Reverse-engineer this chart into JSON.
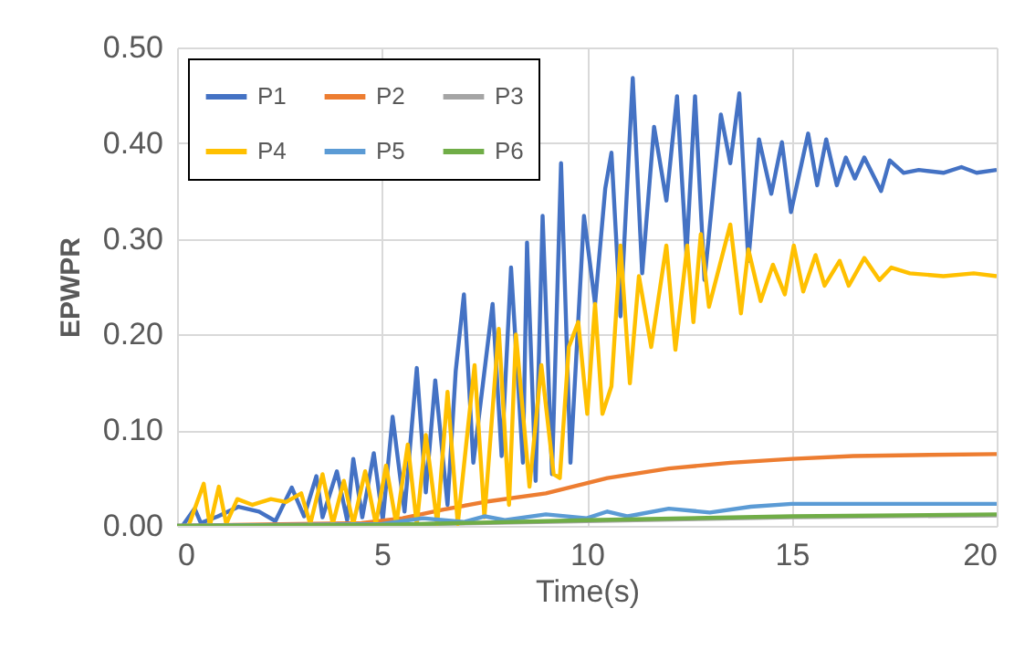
{
  "chart_data": {
    "type": "line",
    "xlabel": "Time(s)",
    "ylabel": "EPWPR",
    "xlim": [
      0,
      20
    ],
    "xticks": [
      0,
      5,
      10,
      15,
      20
    ],
    "ylim": [
      0,
      0.5
    ],
    "yticks": [
      {
        "value": 0,
        "label": "0.00"
      },
      {
        "value": 0.1,
        "label": "0.10"
      },
      {
        "value": 0.2,
        "label": "0.20"
      },
      {
        "value": 0.3,
        "label": "0.30"
      },
      {
        "value": 0.4,
        "label": "0.40"
      },
      {
        "value": 0.5,
        "label": "0.50"
      }
    ],
    "grid": true,
    "legend": "top left",
    "series": [
      {
        "name": "P1",
        "color": "#4472c4",
        "x": [
          0.13,
          0.43,
          0.58,
          1.0,
          1.5,
          2.0,
          2.4,
          2.8,
          3.1,
          3.4,
          3.55,
          3.9,
          4.15,
          4.3,
          4.52,
          4.8,
          5.02,
          5.26,
          5.55,
          5.85,
          6.07,
          6.3,
          6.6,
          6.8,
          7.0,
          7.23,
          7.7,
          7.92,
          8.15,
          8.44,
          8.54,
          8.75,
          8.92,
          9.15,
          9.37,
          9.6,
          9.93,
          10.2,
          10.45,
          10.6,
          10.82,
          11.12,
          11.35,
          11.64,
          11.94,
          12.2,
          12.43,
          12.64,
          12.87,
          13.27,
          13.5,
          13.72,
          13.94,
          14.2,
          14.5,
          14.76,
          14.98,
          15.4,
          15.62,
          15.84,
          16.1,
          16.32,
          16.54,
          16.77,
          17.18,
          17.39,
          17.73,
          18.1,
          18.7,
          19.14,
          19.51,
          20
        ],
        "values": [
          0,
          0.018,
          0.003,
          0.01,
          0.02,
          0.015,
          0.005,
          0.04,
          0.01,
          0.052,
          0.009,
          0.057,
          0.006,
          0.07,
          0.009,
          0.076,
          0.006,
          0.114,
          0.015,
          0.165,
          0.035,
          0.152,
          0.022,
          0.162,
          0.242,
          0.066,
          0.232,
          0.073,
          0.27,
          0.066,
          0.296,
          0.047,
          0.324,
          0.054,
          0.379,
          0.066,
          0.324,
          0.232,
          0.353,
          0.39,
          0.219,
          0.468,
          0.264,
          0.417,
          0.34,
          0.449,
          0.283,
          0.449,
          0.257,
          0.43,
          0.379,
          0.452,
          0.277,
          0.404,
          0.347,
          0.401,
          0.328,
          0.41,
          0.356,
          0.404,
          0.356,
          0.385,
          0.363,
          0.385,
          0.35,
          0.382,
          0.369,
          0.372,
          0.369,
          0.375,
          0.369,
          0.372
        ]
      },
      {
        "name": "P2",
        "color": "#ed7d31",
        "x": [
          0,
          4.5,
          5.5,
          6.5,
          7.5,
          9,
          10.5,
          12,
          13.5,
          15,
          16.5,
          18,
          20
        ],
        "values": [
          0,
          0.003,
          0.008,
          0.017,
          0.025,
          0.034,
          0.05,
          0.06,
          0.066,
          0.07,
          0.073,
          0.074,
          0.075
        ]
      },
      {
        "name": "P3",
        "color": "#a5a5a5",
        "x": [
          0,
          5,
          10,
          15,
          20
        ],
        "values": [
          0,
          0.001,
          0.005,
          0.009,
          0.011
        ]
      },
      {
        "name": "P4",
        "color": "#ffc000",
        "x": [
          0.28,
          0.65,
          0.8,
          1.02,
          1.2,
          1.47,
          1.84,
          2.29,
          2.66,
          3.03,
          3.25,
          3.55,
          3.8,
          4.07,
          4.3,
          4.59,
          4.85,
          5.1,
          5.35,
          5.63,
          5.85,
          6.07,
          6.35,
          6.6,
          6.85,
          7.26,
          7.5,
          7.85,
          8.1,
          8.27,
          8.6,
          8.89,
          9.19,
          9.34,
          9.56,
          9.79,
          10.01,
          10.2,
          10.38,
          10.6,
          10.82,
          11.05,
          11.27,
          11.57,
          11.94,
          12.16,
          12.45,
          12.6,
          12.78,
          12.98,
          13.5,
          13.76,
          13.94,
          14.24,
          14.54,
          14.83,
          15.05,
          15.28,
          15.58,
          15.8,
          16.17,
          16.39,
          16.77,
          17.14,
          17.43,
          17.88,
          18.7,
          19.44,
          20
        ],
        "values": [
          0,
          0.044,
          0,
          0.041,
          0.002,
          0.028,
          0.022,
          0.028,
          0.025,
          0.034,
          0.002,
          0.054,
          0.002,
          0.047,
          0.002,
          0.057,
          0.002,
          0.063,
          0.002,
          0.085,
          0.002,
          0.095,
          0.002,
          0.14,
          0.002,
          0.168,
          0.009,
          0.206,
          0.022,
          0.2,
          0.041,
          0.168,
          0.054,
          0.05,
          0.187,
          0.213,
          0.117,
          0.232,
          0.117,
          0.146,
          0.293,
          0.149,
          0.261,
          0.187,
          0.293,
          0.184,
          0.293,
          0.213,
          0.305,
          0.229,
          0.315,
          0.222,
          0.289,
          0.235,
          0.273,
          0.242,
          0.293,
          0.245,
          0.283,
          0.251,
          0.277,
          0.251,
          0.28,
          0.257,
          0.27,
          0.264,
          0.261,
          0.264,
          0.261
        ]
      },
      {
        "name": "P5",
        "color": "#5b9bd5",
        "x": [
          0,
          5,
          6,
          7,
          7.5,
          8,
          9,
          10,
          10.5,
          11,
          12,
          13,
          14,
          15,
          20
        ],
        "values": [
          0,
          0.002,
          0.008,
          0.004,
          0.01,
          0.006,
          0.012,
          0.008,
          0.015,
          0.01,
          0.018,
          0.014,
          0.02,
          0.023,
          0.023
        ]
      },
      {
        "name": "P6",
        "color": "#70ad47",
        "x": [
          0,
          5,
          10,
          15,
          20
        ],
        "values": [
          0,
          0.001,
          0.006,
          0.01,
          0.012
        ]
      }
    ]
  }
}
